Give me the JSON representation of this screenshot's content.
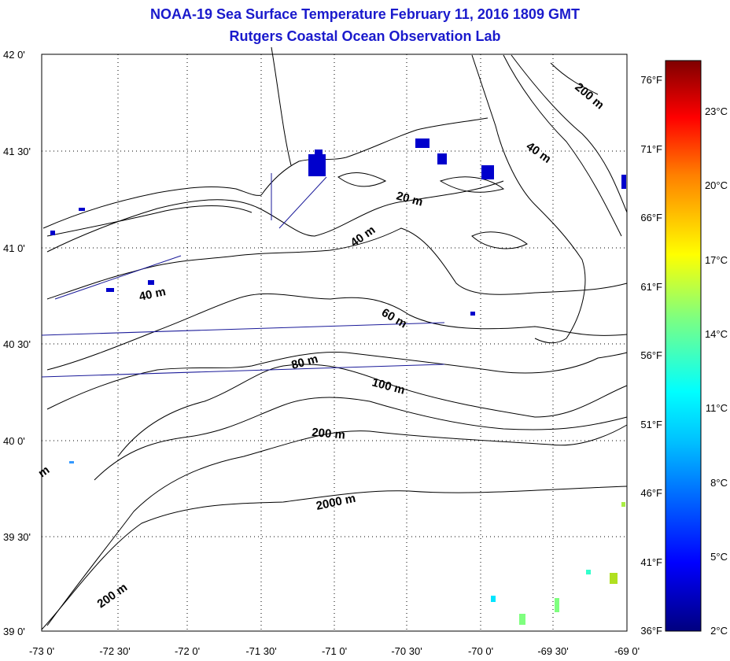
{
  "title": "NOAA-19 Sea Surface Temperature February 11, 2016 1809 GMT",
  "subtitle": "Rutgers Coastal Ocean Observation Lab",
  "map": {
    "lat_ticks": [
      "42 0'",
      "41 30'",
      "41 0'",
      "40 30'",
      "40 0'",
      "39 30'",
      "39 0'"
    ],
    "lon_ticks": [
      "-73 0'",
      "-72 30'",
      "-72 0'",
      "-71 30'",
      "-71 0'",
      "-70 30'",
      "-70 0'",
      "-69 30'",
      "-69 0'"
    ],
    "contour_labels": [
      "200 m",
      "40 m",
      "20 m",
      "40 m",
      "40 m",
      "60 m",
      "80 m",
      "100 m",
      "200 m",
      "2000 m",
      "200 m",
      "m"
    ]
  },
  "colorbar": {
    "f_labels": [
      "76°F",
      "71°F",
      "66°F",
      "61°F",
      "56°F",
      "51°F",
      "46°F",
      "41°F",
      "36°F"
    ],
    "c_labels": [
      "23°C",
      "20°C",
      "17°C",
      "14°C",
      "11°C",
      "8°C",
      "5°C",
      "2°C"
    ],
    "colors": [
      "#00007f",
      "#0000ff",
      "#007fff",
      "#00ffff",
      "#7fff7f",
      "#ffff00",
      "#ff7f00",
      "#ff0000",
      "#7f0000"
    ]
  },
  "colors": {
    "title": "#1a1acc",
    "track": "#1a1a99"
  }
}
